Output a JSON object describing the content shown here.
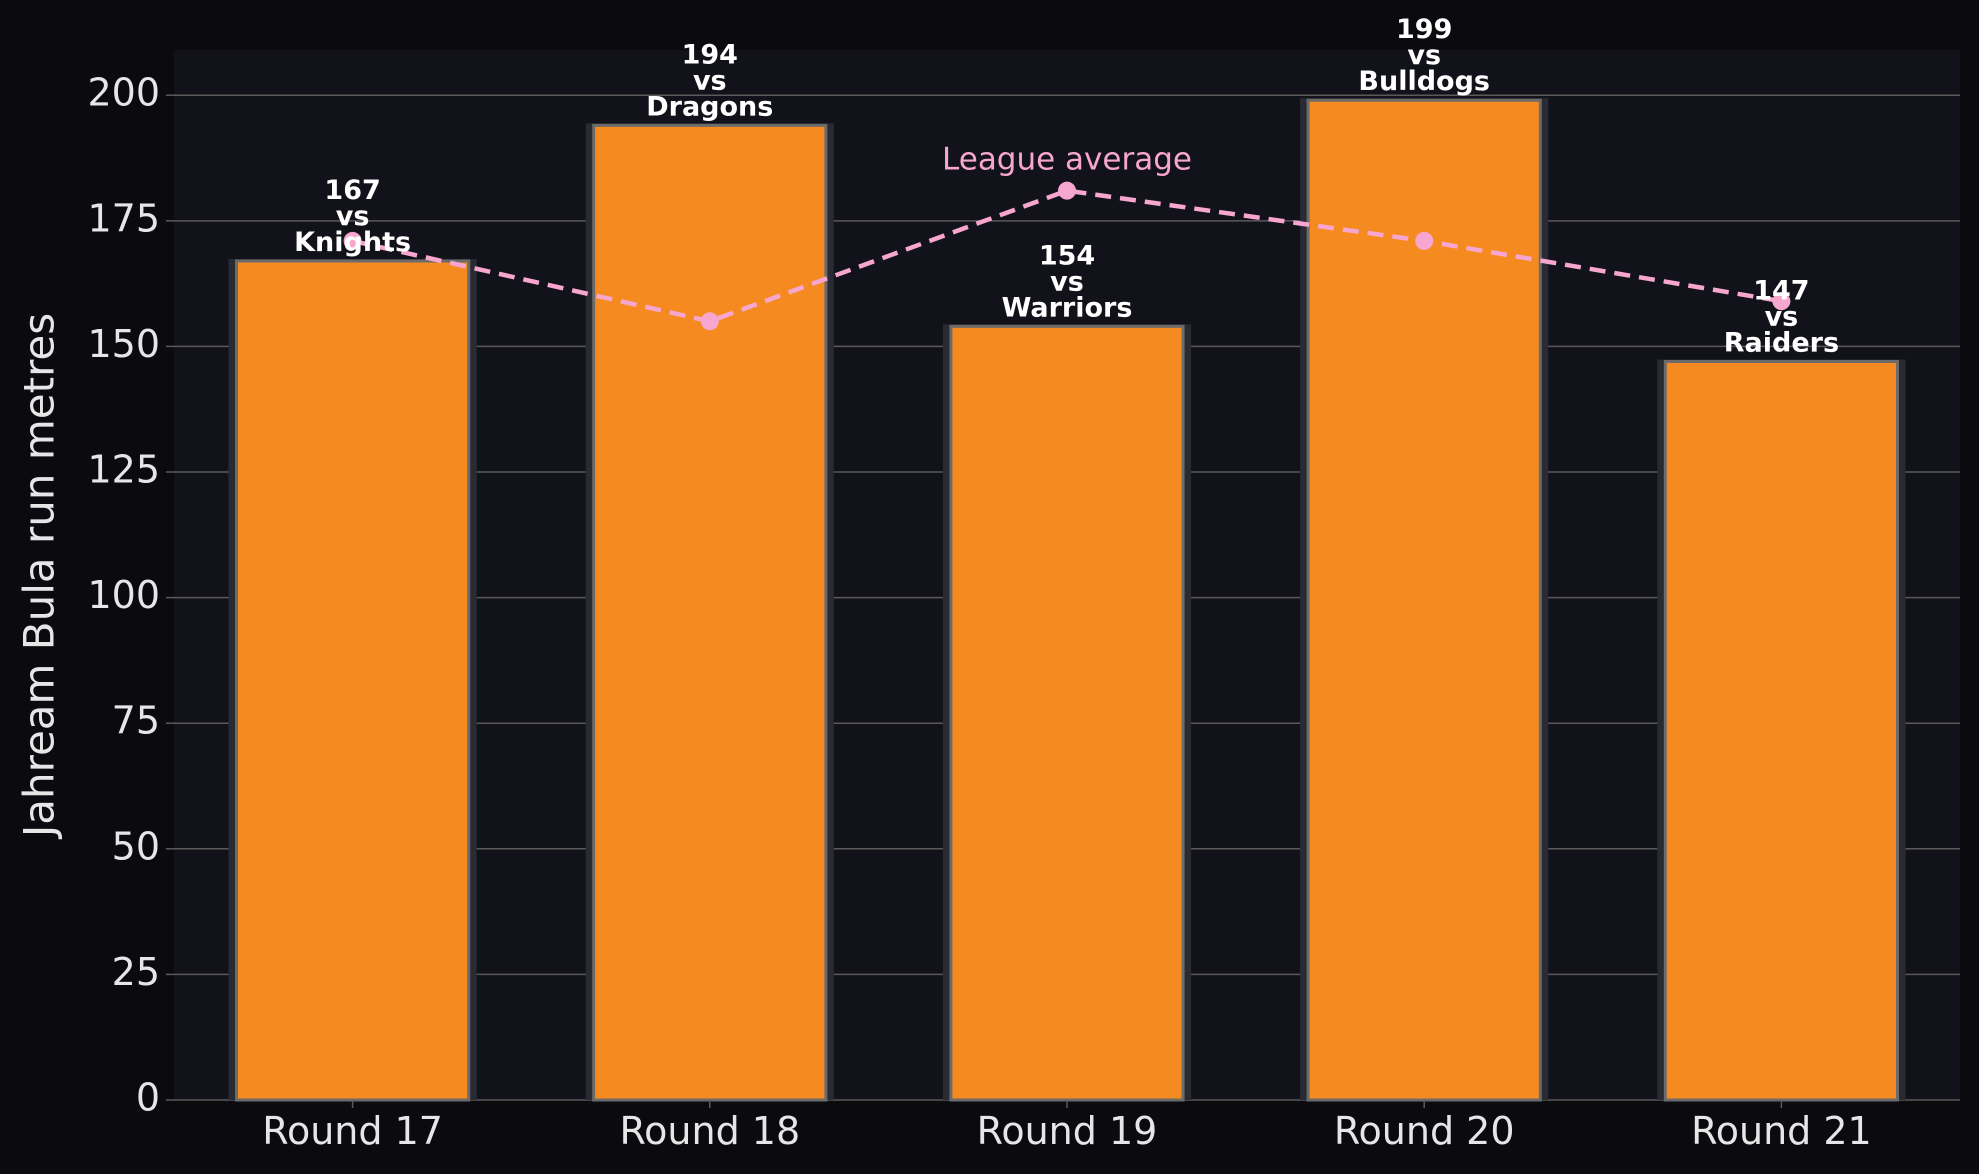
{
  "chart_data": {
    "type": "bar",
    "ylabel": "Jahream Bula run metres",
    "ylim": [
      0,
      209
    ],
    "yticks": [
      0,
      25,
      50,
      75,
      100,
      125,
      150,
      175,
      200
    ],
    "grid": true,
    "categories": [
      "Round 17",
      "Round 18",
      "Round 19",
      "Round 20",
      "Round 21"
    ],
    "values": [
      167,
      194,
      154,
      199,
      147
    ],
    "opponents": [
      "Knights",
      "Dragons",
      "Warriors",
      "Bulldogs",
      "Raiders"
    ],
    "vs_text": "vs",
    "line_series": {
      "label": "League average",
      "values": [
        171,
        155,
        181,
        171,
        159
      ]
    },
    "colors": {
      "background": "#0b0b0f",
      "plot_background": "#12121a",
      "bar": "#f58b20",
      "bar_edge": "#6b6b6b",
      "line": "#f7a6cf",
      "grid": "#5a5a5a",
      "text": "#e6e6e6"
    }
  }
}
